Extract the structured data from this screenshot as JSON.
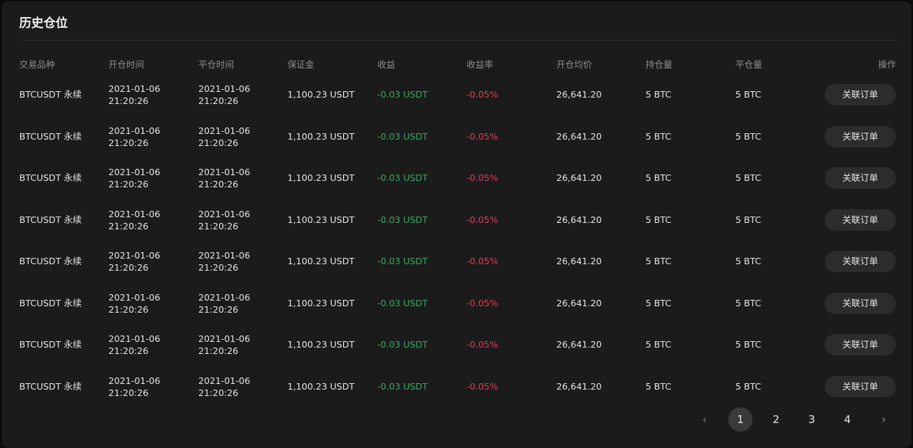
{
  "panel": {
    "title": "历史仓位"
  },
  "table": {
    "headers": [
      "交易品种",
      "开仓时间",
      "平仓时间",
      "保证金",
      "收益",
      "收益率",
      "开仓均价",
      "持仓量",
      "平仓量",
      "操作"
    ],
    "rows": [
      {
        "symbol": "BTCUSDT 永续",
        "open_date": "2021-01-06",
        "open_time": "21:20:26",
        "close_date": "2021-01-06",
        "close_time": "21:20:26",
        "margin": "1,100.23 USDT",
        "pnl": "-0.03 USDT",
        "pnl_rate": "-0.05%",
        "avg_open_price": "26,641.20",
        "position_size": "5 BTC",
        "closed_size": "5 BTC",
        "action_label": "关联订单"
      },
      {
        "symbol": "BTCUSDT 永续",
        "open_date": "2021-01-06",
        "open_time": "21:20:26",
        "close_date": "2021-01-06",
        "close_time": "21:20:26",
        "margin": "1,100.23 USDT",
        "pnl": "-0.03 USDT",
        "pnl_rate": "-0.05%",
        "avg_open_price": "26,641.20",
        "position_size": "5 BTC",
        "closed_size": "5 BTC",
        "action_label": "关联订单"
      },
      {
        "symbol": "BTCUSDT 永续",
        "open_date": "2021-01-06",
        "open_time": "21:20:26",
        "close_date": "2021-01-06",
        "close_time": "21:20:26",
        "margin": "1,100.23 USDT",
        "pnl": "-0.03 USDT",
        "pnl_rate": "-0.05%",
        "avg_open_price": "26,641.20",
        "position_size": "5 BTC",
        "closed_size": "5 BTC",
        "action_label": "关联订单"
      },
      {
        "symbol": "BTCUSDT 永续",
        "open_date": "2021-01-06",
        "open_time": "21:20:26",
        "close_date": "2021-01-06",
        "close_time": "21:20:26",
        "margin": "1,100.23 USDT",
        "pnl": "-0.03 USDT",
        "pnl_rate": "-0.05%",
        "avg_open_price": "26,641.20",
        "position_size": "5 BTC",
        "closed_size": "5 BTC",
        "action_label": "关联订单"
      },
      {
        "symbol": "BTCUSDT 永续",
        "open_date": "2021-01-06",
        "open_time": "21:20:26",
        "close_date": "2021-01-06",
        "close_time": "21:20:26",
        "margin": "1,100.23 USDT",
        "pnl": "-0.03 USDT",
        "pnl_rate": "-0.05%",
        "avg_open_price": "26,641.20",
        "position_size": "5 BTC",
        "closed_size": "5 BTC",
        "action_label": "关联订单"
      },
      {
        "symbol": "BTCUSDT 永续",
        "open_date": "2021-01-06",
        "open_time": "21:20:26",
        "close_date": "2021-01-06",
        "close_time": "21:20:26",
        "margin": "1,100.23 USDT",
        "pnl": "-0.03 USDT",
        "pnl_rate": "-0.05%",
        "avg_open_price": "26,641.20",
        "position_size": "5 BTC",
        "closed_size": "5 BTC",
        "action_label": "关联订单"
      },
      {
        "symbol": "BTCUSDT 永续",
        "open_date": "2021-01-06",
        "open_time": "21:20:26",
        "close_date": "2021-01-06",
        "close_time": "21:20:26",
        "margin": "1,100.23 USDT",
        "pnl": "-0.03 USDT",
        "pnl_rate": "-0.05%",
        "avg_open_price": "26,641.20",
        "position_size": "5 BTC",
        "closed_size": "5 BTC",
        "action_label": "关联订单"
      },
      {
        "symbol": "BTCUSDT 永续",
        "open_date": "2021-01-06",
        "open_time": "21:20:26",
        "close_date": "2021-01-06",
        "close_time": "21:20:26",
        "margin": "1,100.23 USDT",
        "pnl": "-0.03 USDT",
        "pnl_rate": "-0.05%",
        "avg_open_price": "26,641.20",
        "position_size": "5 BTC",
        "closed_size": "5 BTC",
        "action_label": "关联订单"
      }
    ]
  },
  "pagination": {
    "prev_icon": "chevron-left-icon",
    "next_icon": "chevron-right-icon",
    "prev_glyph": "‹",
    "next_glyph": "›",
    "pages": [
      "1",
      "2",
      "3",
      "4"
    ],
    "current_page": "1"
  },
  "colors": {
    "positive": "#3aa860",
    "negative": "#d9405a",
    "panel_bg": "#1b1b1b",
    "button_bg": "#2c2c2c"
  }
}
